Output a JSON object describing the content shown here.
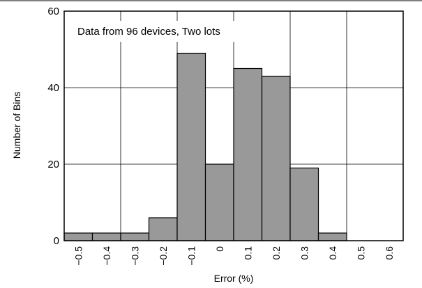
{
  "chart_data": {
    "type": "bar",
    "title": "",
    "annotation": "Data from 96 devices, Two lots",
    "xlabel": "Error (%)",
    "ylabel": "Number of Bins",
    "categories": [
      "-0.5",
      "-0.4",
      "-0.3",
      "-0.2",
      "-0.1",
      "0",
      "0.1",
      "0.2",
      "0.3",
      "0.4",
      "0.5",
      "0.6"
    ],
    "x_tick_labels": [
      "−0.5",
      "−0.4",
      "−0.3",
      "−0.2",
      "−0.1",
      "0",
      "0.1",
      "0.2",
      "0.3",
      "0.4",
      "0.5",
      "0.6"
    ],
    "values": [
      2,
      2,
      2,
      6,
      49,
      20,
      45,
      43,
      19,
      2,
      0,
      0
    ],
    "ylim": [
      0,
      60
    ],
    "y_ticks": [
      "0",
      "20",
      "40",
      "60"
    ],
    "grid": true,
    "bar_color": "#999999"
  }
}
